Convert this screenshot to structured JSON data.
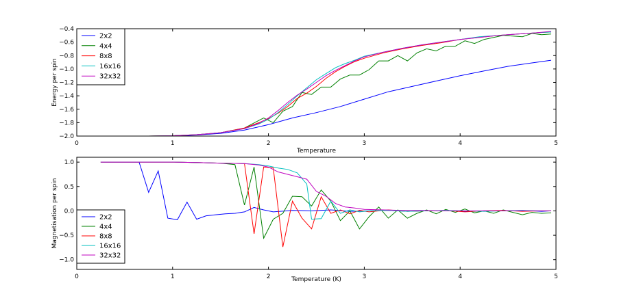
{
  "chart_data": [
    {
      "type": "line",
      "title": "",
      "xlabel": "Temperature",
      "ylabel": "Energy per spin",
      "xlim": [
        0,
        5
      ],
      "ylim": [
        -2.0,
        -0.4
      ],
      "xticks": [
        0,
        1,
        2,
        3,
        4,
        5
      ],
      "yticks": [
        -2.0,
        -1.8,
        -1.6,
        -1.4,
        -1.2,
        -1.0,
        -0.8,
        -0.6,
        -0.4
      ],
      "xtick_labels": [
        "0",
        "1",
        "2",
        "3",
        "4",
        "5"
      ],
      "ytick_labels": [
        "−2.0",
        "−1.8",
        "−1.6",
        "−1.4",
        "−1.2",
        "−1.0",
        "−0.8",
        "−0.6",
        "−0.4"
      ],
      "legend_position": "upper-left",
      "series": [
        {
          "name": "2x2",
          "color": "#0000ff",
          "x": [
            0.25,
            0.5,
            0.75,
            1.0,
            1.25,
            1.5,
            1.75,
            2.0,
            2.1,
            2.25,
            2.5,
            2.75,
            3.0,
            3.25,
            3.5,
            3.75,
            4.0,
            4.25,
            4.5,
            4.75,
            4.95
          ],
          "y": [
            -2.0,
            -2.0,
            -2.0,
            -2.0,
            -1.985,
            -1.96,
            -1.91,
            -1.83,
            -1.79,
            -1.73,
            -1.65,
            -1.56,
            -1.45,
            -1.34,
            -1.26,
            -1.18,
            -1.1,
            -1.03,
            -0.96,
            -0.91,
            -0.87
          ]
        },
        {
          "name": "4x4",
          "color": "#008000",
          "x": [
            0.25,
            0.5,
            0.75,
            1.0,
            1.25,
            1.5,
            1.75,
            1.95,
            2.05,
            2.15,
            2.25,
            2.35,
            2.45,
            2.55,
            2.65,
            2.75,
            2.85,
            2.95,
            3.05,
            3.15,
            3.25,
            3.35,
            3.45,
            3.55,
            3.65,
            3.75,
            3.85,
            3.95,
            4.05,
            4.15,
            4.25,
            4.35,
            4.45,
            4.55,
            4.65,
            4.75,
            4.85,
            4.95
          ],
          "y": [
            -2.0,
            -2.0,
            -2.0,
            -1.995,
            -1.98,
            -1.95,
            -1.88,
            -1.73,
            -1.8,
            -1.63,
            -1.56,
            -1.35,
            -1.38,
            -1.27,
            -1.27,
            -1.15,
            -1.09,
            -1.09,
            -1.01,
            -0.88,
            -0.88,
            -0.8,
            -0.88,
            -0.76,
            -0.7,
            -0.73,
            -0.66,
            -0.66,
            -0.58,
            -0.62,
            -0.56,
            -0.53,
            -0.5,
            -0.51,
            -0.52,
            -0.47,
            -0.49,
            -0.48
          ]
        },
        {
          "name": "8x8",
          "color": "#ff0000",
          "x": [
            0.25,
            0.5,
            0.75,
            1.0,
            1.25,
            1.5,
            1.75,
            1.9,
            2.0,
            2.1,
            2.2,
            2.3,
            2.4,
            2.5,
            2.6,
            2.7,
            2.8,
            2.9,
            3.0,
            3.2,
            3.4,
            3.6,
            3.8,
            4.0,
            4.2,
            4.4,
            4.6,
            4.8,
            4.95
          ],
          "y": [
            -2.0,
            -2.0,
            -2.0,
            -1.995,
            -1.98,
            -1.95,
            -1.88,
            -1.8,
            -1.74,
            -1.66,
            -1.56,
            -1.44,
            -1.36,
            -1.26,
            -1.14,
            -1.04,
            -0.96,
            -0.89,
            -0.84,
            -0.76,
            -0.7,
            -0.65,
            -0.61,
            -0.56,
            -0.53,
            -0.5,
            -0.48,
            -0.46,
            -0.45
          ]
        },
        {
          "name": "16x16",
          "color": "#00bfbf",
          "x": [
            0.25,
            0.5,
            0.75,
            1.0,
            1.25,
            1.5,
            1.75,
            1.9,
            2.0,
            2.1,
            2.2,
            2.3,
            2.4,
            2.5,
            2.6,
            2.7,
            2.8,
            2.9,
            3.0,
            3.2,
            3.4,
            3.6,
            3.8,
            4.0,
            4.2,
            4.4,
            4.6,
            4.8,
            4.95
          ],
          "y": [
            -2.0,
            -2.0,
            -2.0,
            -1.995,
            -1.98,
            -1.95,
            -1.89,
            -1.82,
            -1.75,
            -1.65,
            -1.53,
            -1.4,
            -1.28,
            -1.16,
            -1.07,
            -0.98,
            -0.92,
            -0.87,
            -0.81,
            -0.75,
            -0.69,
            -0.64,
            -0.6,
            -0.56,
            -0.52,
            -0.5,
            -0.48,
            -0.46,
            -0.45
          ]
        },
        {
          "name": "32x32",
          "color": "#bf00bf",
          "x": [
            0.25,
            0.5,
            0.75,
            1.0,
            1.25,
            1.5,
            1.75,
            1.9,
            2.0,
            2.1,
            2.2,
            2.3,
            2.4,
            2.5,
            2.6,
            2.7,
            2.8,
            2.9,
            3.0,
            3.2,
            3.4,
            3.6,
            3.8,
            4.0,
            4.2,
            4.4,
            4.6,
            4.8,
            4.95
          ],
          "y": [
            -2.0,
            -2.0,
            -2.0,
            -1.995,
            -1.98,
            -1.95,
            -1.89,
            -1.81,
            -1.73,
            -1.62,
            -1.5,
            -1.39,
            -1.3,
            -1.2,
            -1.1,
            -1.02,
            -0.95,
            -0.88,
            -0.82,
            -0.75,
            -0.69,
            -0.64,
            -0.6,
            -0.56,
            -0.53,
            -0.5,
            -0.48,
            -0.46,
            -0.44
          ]
        }
      ]
    },
    {
      "type": "line",
      "title": "",
      "xlabel": "Temperature (K)",
      "ylabel": "Magnetisation per spin",
      "xlim": [
        0,
        5
      ],
      "ylim": [
        -1.2,
        1.1
      ],
      "xticks": [
        0,
        1,
        2,
        3,
        4,
        5
      ],
      "yticks": [
        -1.0,
        -0.5,
        0.0,
        0.5,
        1.0
      ],
      "xtick_labels": [
        "0",
        "1",
        "2",
        "3",
        "4",
        "5"
      ],
      "ytick_labels": [
        "−1.0",
        "−0.5",
        "0.0",
        "0.5",
        "1.0"
      ],
      "legend_position": "lower-left",
      "series": [
        {
          "name": "2x2",
          "color": "#0000ff",
          "x": [
            0.25,
            0.45,
            0.65,
            0.75,
            0.85,
            0.95,
            1.05,
            1.15,
            1.25,
            1.35,
            1.45,
            1.55,
            1.65,
            1.75,
            1.85,
            1.95,
            2.05,
            2.25,
            2.45,
            2.65,
            2.85,
            3.05,
            3.25,
            3.45,
            3.65,
            3.85,
            4.05,
            4.25,
            4.45,
            4.65,
            4.85,
            4.95
          ],
          "y": [
            1.0,
            1.0,
            1.0,
            0.38,
            0.82,
            -0.15,
            -0.18,
            0.18,
            -0.17,
            -0.1,
            -0.08,
            -0.06,
            -0.05,
            -0.02,
            0.07,
            0.02,
            -0.02,
            0.01,
            0.0,
            0.02,
            -0.01,
            0.0,
            0.01,
            -0.01,
            0.0,
            0.01,
            -0.01,
            0.0,
            0.0,
            0.01,
            -0.01,
            0.0
          ]
        },
        {
          "name": "4x4",
          "color": "#008000",
          "x": [
            0.25,
            0.5,
            0.75,
            1.0,
            1.25,
            1.5,
            1.65,
            1.75,
            1.85,
            1.95,
            2.05,
            2.15,
            2.25,
            2.35,
            2.45,
            2.55,
            2.65,
            2.75,
            2.85,
            2.95,
            3.05,
            3.15,
            3.25,
            3.35,
            3.45,
            3.55,
            3.65,
            3.75,
            3.85,
            3.95,
            4.05,
            4.15,
            4.25,
            4.35,
            4.45,
            4.55,
            4.65,
            4.75,
            4.85,
            4.95
          ],
          "y": [
            1.0,
            1.0,
            1.0,
            1.0,
            0.99,
            0.98,
            0.95,
            0.12,
            0.9,
            -0.56,
            -0.17,
            -0.05,
            0.3,
            0.29,
            0.1,
            0.43,
            0.2,
            -0.2,
            0.0,
            -0.37,
            -0.12,
            0.08,
            -0.15,
            0.02,
            -0.15,
            -0.05,
            0.02,
            -0.06,
            0.03,
            -0.03,
            0.04,
            -0.04,
            0.0,
            -0.05,
            0.02,
            -0.03,
            -0.08,
            -0.03,
            -0.05,
            -0.04
          ]
        },
        {
          "name": "8x8",
          "color": "#ff0000",
          "x": [
            0.25,
            0.5,
            0.75,
            1.0,
            1.25,
            1.5,
            1.75,
            1.85,
            1.95,
            2.05,
            2.15,
            2.25,
            2.35,
            2.45,
            2.55,
            2.65,
            2.75,
            2.85,
            2.95,
            3.05,
            3.25,
            3.45,
            3.65,
            3.85,
            4.05,
            4.25,
            4.45,
            4.65,
            4.85,
            4.95
          ],
          "y": [
            1.0,
            1.0,
            1.0,
            1.0,
            0.99,
            0.98,
            0.97,
            -0.47,
            0.9,
            0.88,
            -0.74,
            0.2,
            -0.15,
            -0.37,
            0.29,
            -0.05,
            0.02,
            -0.06,
            0.01,
            -0.02,
            0.02,
            -0.01,
            0.0,
            0.01,
            -0.02,
            0.0,
            0.01,
            -0.01,
            0.0,
            0.0
          ]
        },
        {
          "name": "16x16",
          "color": "#00bfbf",
          "x": [
            0.25,
            0.5,
            0.75,
            1.0,
            1.25,
            1.5,
            1.75,
            1.9,
            2.0,
            2.1,
            2.2,
            2.3,
            2.4,
            2.45,
            2.55,
            2.65,
            2.75,
            2.85,
            2.95,
            3.05,
            3.25,
            3.45,
            3.65,
            3.85,
            4.05,
            4.25,
            4.45,
            4.65,
            4.85,
            4.95
          ],
          "y": [
            1.0,
            1.0,
            1.0,
            1.0,
            0.99,
            0.98,
            0.97,
            0.95,
            0.92,
            0.88,
            0.85,
            0.78,
            0.55,
            -0.17,
            -0.16,
            0.2,
            -0.05,
            0.02,
            -0.02,
            0.0,
            0.01,
            -0.01,
            0.0,
            0.01,
            0.0,
            -0.01,
            0.0,
            0.01,
            0.0,
            0.0
          ]
        },
        {
          "name": "32x32",
          "color": "#bf00bf",
          "x": [
            0.25,
            0.5,
            0.75,
            1.0,
            1.25,
            1.5,
            1.75,
            1.9,
            2.0,
            2.1,
            2.2,
            2.3,
            2.4,
            2.5,
            2.6,
            2.7,
            2.8,
            2.9,
            3.0,
            3.2,
            3.4,
            3.6,
            3.8,
            4.0,
            4.2,
            4.4,
            4.6,
            4.8,
            4.95
          ],
          "y": [
            1.0,
            1.0,
            1.0,
            1.0,
            0.99,
            0.98,
            0.97,
            0.94,
            0.9,
            0.8,
            0.75,
            0.7,
            0.65,
            0.4,
            0.3,
            0.15,
            0.08,
            0.06,
            0.03,
            0.02,
            0.01,
            0.01,
            0.0,
            0.0,
            0.0,
            0.0,
            0.0,
            0.0,
            0.0
          ]
        }
      ]
    }
  ]
}
